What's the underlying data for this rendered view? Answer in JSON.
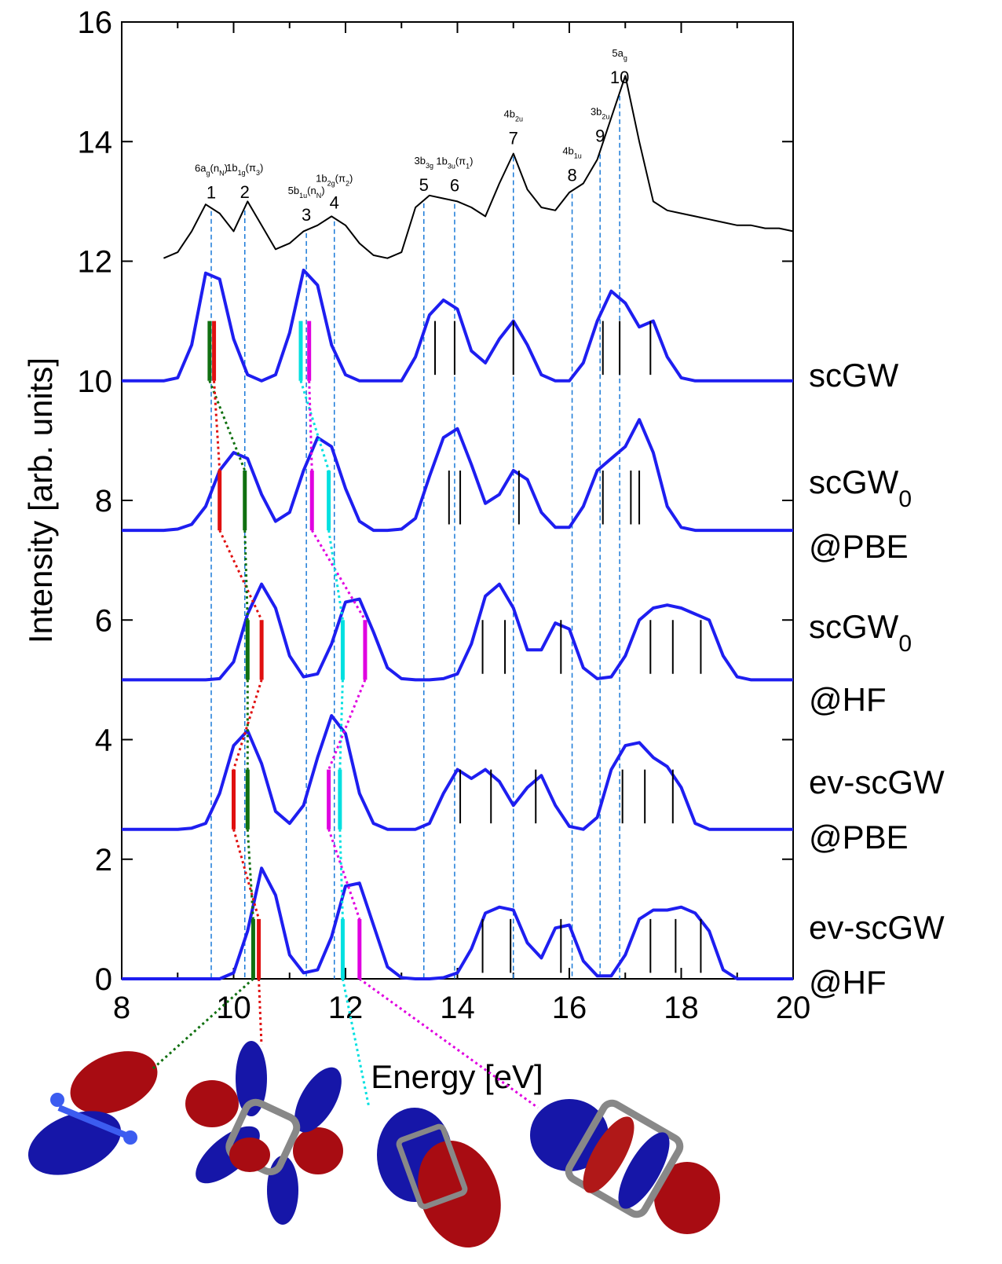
{
  "chart_data": {
    "type": "line",
    "xlabel": "Energy [eV]",
    "ylabel": "Intensity [arb. units]",
    "xlim": [
      8,
      20
    ],
    "xticks": [
      8,
      10,
      12,
      14,
      16,
      18,
      20
    ],
    "xminorticks": [
      9,
      11,
      13,
      15,
      17,
      19
    ],
    "ylim": [
      0,
      16
    ],
    "yticks": [
      0,
      2,
      4,
      6,
      8,
      10,
      12,
      14,
      16
    ],
    "x": [
      8,
      8.25,
      8.5,
      8.75,
      9,
      9.25,
      9.5,
      9.75,
      10,
      10.25,
      10.5,
      10.75,
      11,
      11.25,
      11.5,
      11.75,
      12,
      12.25,
      12.5,
      12.75,
      13,
      13.25,
      13.5,
      13.75,
      14,
      14.25,
      14.5,
      14.75,
      15,
      15.25,
      15.5,
      15.75,
      16,
      16.25,
      16.5,
      16.75,
      17,
      17.25,
      17.5,
      17.75,
      18,
      18.25,
      18.5,
      18.75,
      19,
      19.25,
      19.5,
      19.75,
      20
    ],
    "experiment": {
      "color": "#000000",
      "values": [
        null,
        null,
        null,
        12.05,
        12.15,
        12.5,
        12.95,
        12.8,
        12.5,
        13.0,
        12.6,
        12.2,
        12.3,
        12.5,
        12.6,
        12.75,
        12.6,
        12.3,
        12.1,
        12.05,
        12.15,
        12.9,
        13.1,
        13.05,
        13.0,
        12.9,
        12.75,
        13.3,
        13.8,
        13.2,
        12.9,
        12.85,
        13.15,
        13.3,
        13.7,
        14.4,
        15.1,
        14.0,
        13.0,
        12.85,
        12.8,
        12.75,
        12.7,
        12.65,
        12.6,
        12.6,
        12.55,
        12.55,
        12.5
      ]
    },
    "peaks": [
      {
        "label": "1",
        "x": 9.6,
        "orbital": [
          "6a",
          "g",
          "(n",
          "N",
          ")"
        ]
      },
      {
        "label": "2",
        "x": 10.2,
        "orbital": [
          "1b",
          "1g",
          "(π",
          "3",
          ")"
        ]
      },
      {
        "label": "3",
        "x": 11.3,
        "orbital": [
          "5b",
          "1u",
          "(n",
          "N",
          ")"
        ]
      },
      {
        "label": "4",
        "x": 11.8,
        "orbital": [
          "1b",
          "2g",
          "(π",
          "2",
          ")"
        ]
      },
      {
        "label": "5",
        "x": 13.4,
        "orbital": [
          "3b",
          "3g"
        ]
      },
      {
        "label": "6",
        "x": 13.95,
        "orbital": [
          "1b",
          "3u",
          "(π",
          "1",
          ")"
        ]
      },
      {
        "label": "7",
        "x": 15.0,
        "orbital": [
          "4b",
          "2u"
        ]
      },
      {
        "label": "8",
        "x": 16.05,
        "orbital": [
          "4b",
          "1u"
        ]
      },
      {
        "label": "9",
        "x": 16.55,
        "orbital": [
          "3b",
          "2u"
        ]
      },
      {
        "label": "10",
        "x": 16.9,
        "orbital": [
          "5a",
          "g"
        ]
      }
    ],
    "series": [
      {
        "name": [
          [
            "scGW"
          ]
        ],
        "color": "#1e1ef0",
        "baseline": 10,
        "values": [
          10,
          10,
          10,
          10,
          10.05,
          10.6,
          11.8,
          11.7,
          10.7,
          10.1,
          10,
          10.1,
          10.8,
          11.85,
          11.6,
          10.6,
          10.1,
          10,
          10,
          10,
          10,
          10.4,
          11.1,
          11.35,
          11.2,
          10.5,
          10.3,
          10.7,
          11.0,
          10.6,
          10.1,
          10,
          10,
          10.3,
          11.0,
          11.5,
          11.3,
          10.9,
          11.0,
          10.4,
          10.05,
          10,
          10,
          10,
          10,
          10,
          10,
          10,
          10
        ],
        "sticks": [
          {
            "x": 9.57,
            "color": "#107010"
          },
          {
            "x": 9.65,
            "color": "#e01010"
          },
          {
            "x": 11.2,
            "color": "#00e0e0"
          },
          {
            "x": 11.35,
            "color": "#e000e0"
          },
          {
            "x": 13.6,
            "color": "#000000"
          },
          {
            "x": 13.95,
            "color": "#000000"
          },
          {
            "x": 15.0,
            "color": "#000000"
          },
          {
            "x": 16.6,
            "color": "#000000"
          },
          {
            "x": 16.9,
            "color": "#000000"
          },
          {
            "x": 17.45,
            "color": "#000000"
          }
        ]
      },
      {
        "name": [
          [
            "scGW",
            "0"
          ],
          [
            "@PBE"
          ]
        ],
        "color": "#1e1ef0",
        "baseline": 7.5,
        "values": [
          7.5,
          7.5,
          7.5,
          7.5,
          7.52,
          7.6,
          7.9,
          8.5,
          8.8,
          8.7,
          8.1,
          7.65,
          7.8,
          8.5,
          9.05,
          8.9,
          8.2,
          7.65,
          7.5,
          7.5,
          7.52,
          7.7,
          8.4,
          9.05,
          9.2,
          8.6,
          7.95,
          8.1,
          8.5,
          8.35,
          7.8,
          7.55,
          7.55,
          7.9,
          8.5,
          8.7,
          8.9,
          9.35,
          8.8,
          7.9,
          7.55,
          7.5,
          7.5,
          7.5,
          7.5,
          7.5,
          7.5,
          7.5,
          7.5
        ],
        "sticks": [
          {
            "x": 9.75,
            "color": "#e01010"
          },
          {
            "x": 10.2,
            "color": "#107010"
          },
          {
            "x": 11.4,
            "color": "#e000e0"
          },
          {
            "x": 11.7,
            "color": "#00e0e0"
          },
          {
            "x": 13.85,
            "color": "#000000"
          },
          {
            "x": 14.05,
            "color": "#000000"
          },
          {
            "x": 15.1,
            "color": "#000000"
          },
          {
            "x": 16.6,
            "color": "#000000"
          },
          {
            "x": 17.1,
            "color": "#000000"
          },
          {
            "x": 17.25,
            "color": "#000000"
          }
        ]
      },
      {
        "name": [
          [
            "scGW",
            "0"
          ],
          [
            "@HF"
          ]
        ],
        "color": "#1e1ef0",
        "baseline": 5,
        "values": [
          5,
          5,
          5,
          5,
          5,
          5,
          5,
          5.02,
          5.3,
          6.1,
          6.6,
          6.2,
          5.4,
          5.05,
          5.1,
          5.6,
          6.3,
          6.35,
          5.8,
          5.2,
          5.02,
          5,
          5,
          5.02,
          5.1,
          5.6,
          6.4,
          6.6,
          6.2,
          5.5,
          5.5,
          5.95,
          5.85,
          5.2,
          5.02,
          5.05,
          5.4,
          6.0,
          6.2,
          6.25,
          6.2,
          6.1,
          6.0,
          5.4,
          5.05,
          5,
          5,
          5,
          5
        ],
        "sticks": [
          {
            "x": 10.25,
            "color": "#107010"
          },
          {
            "x": 10.5,
            "color": "#e01010"
          },
          {
            "x": 11.95,
            "color": "#00e0e0"
          },
          {
            "x": 12.35,
            "color": "#e000e0"
          },
          {
            "x": 14.45,
            "color": "#000000"
          },
          {
            "x": 14.85,
            "color": "#000000"
          },
          {
            "x": 15.85,
            "color": "#000000"
          },
          {
            "x": 17.45,
            "color": "#000000"
          },
          {
            "x": 17.85,
            "color": "#000000"
          },
          {
            "x": 18.35,
            "color": "#000000"
          }
        ]
      },
      {
        "name": [
          [
            "ev-scGW"
          ],
          [
            "@PBE"
          ]
        ],
        "color": "#1e1ef0",
        "baseline": 2.5,
        "values": [
          2.5,
          2.5,
          2.5,
          2.5,
          2.5,
          2.52,
          2.6,
          3.1,
          3.9,
          4.15,
          3.6,
          2.8,
          2.6,
          2.9,
          3.7,
          4.4,
          4.1,
          3.1,
          2.6,
          2.5,
          2.5,
          2.5,
          2.6,
          3.1,
          3.5,
          3.35,
          3.5,
          3.3,
          2.9,
          3.2,
          3.4,
          2.9,
          2.55,
          2.5,
          2.7,
          3.5,
          3.9,
          3.95,
          3.7,
          3.55,
          3.2,
          2.6,
          2.5,
          2.5,
          2.5,
          2.5,
          2.5,
          2.5,
          2.5
        ],
        "sticks": [
          {
            "x": 10.0,
            "color": "#e01010"
          },
          {
            "x": 10.25,
            "color": "#107010"
          },
          {
            "x": 11.7,
            "color": "#e000e0"
          },
          {
            "x": 11.9,
            "color": "#00e0e0"
          },
          {
            "x": 14.05,
            "color": "#000000"
          },
          {
            "x": 14.6,
            "color": "#000000"
          },
          {
            "x": 15.4,
            "color": "#000000"
          },
          {
            "x": 16.95,
            "color": "#000000"
          },
          {
            "x": 17.35,
            "color": "#000000"
          },
          {
            "x": 17.85,
            "color": "#000000"
          }
        ]
      },
      {
        "name": [
          [
            "ev-scGW"
          ],
          [
            "@HF"
          ]
        ],
        "color": "#1e1ef0",
        "baseline": 0,
        "values": [
          0,
          0,
          0,
          0,
          0,
          0,
          0,
          0,
          0.1,
          0.8,
          1.85,
          1.4,
          0.4,
          0.1,
          0.15,
          0.7,
          1.55,
          1.6,
          0.9,
          0.2,
          0.02,
          0,
          0,
          0.02,
          0.1,
          0.5,
          1.1,
          1.2,
          1.15,
          0.6,
          0.35,
          0.85,
          0.9,
          0.3,
          0.05,
          0.05,
          0.4,
          1.0,
          1.15,
          1.15,
          1.2,
          1.1,
          0.8,
          0.15,
          0,
          0,
          0,
          0,
          0
        ],
        "sticks": [
          {
            "x": 10.35,
            "color": "#107010"
          },
          {
            "x": 10.45,
            "color": "#e01010"
          },
          {
            "x": 11.95,
            "color": "#00e0e0"
          },
          {
            "x": 12.25,
            "color": "#e000e0"
          },
          {
            "x": 14.45,
            "color": "#000000"
          },
          {
            "x": 14.95,
            "color": "#000000"
          },
          {
            "x": 15.85,
            "color": "#000000"
          },
          {
            "x": 17.45,
            "color": "#000000"
          },
          {
            "x": 17.9,
            "color": "#000000"
          },
          {
            "x": 18.35,
            "color": "#000000"
          }
        ]
      }
    ]
  }
}
